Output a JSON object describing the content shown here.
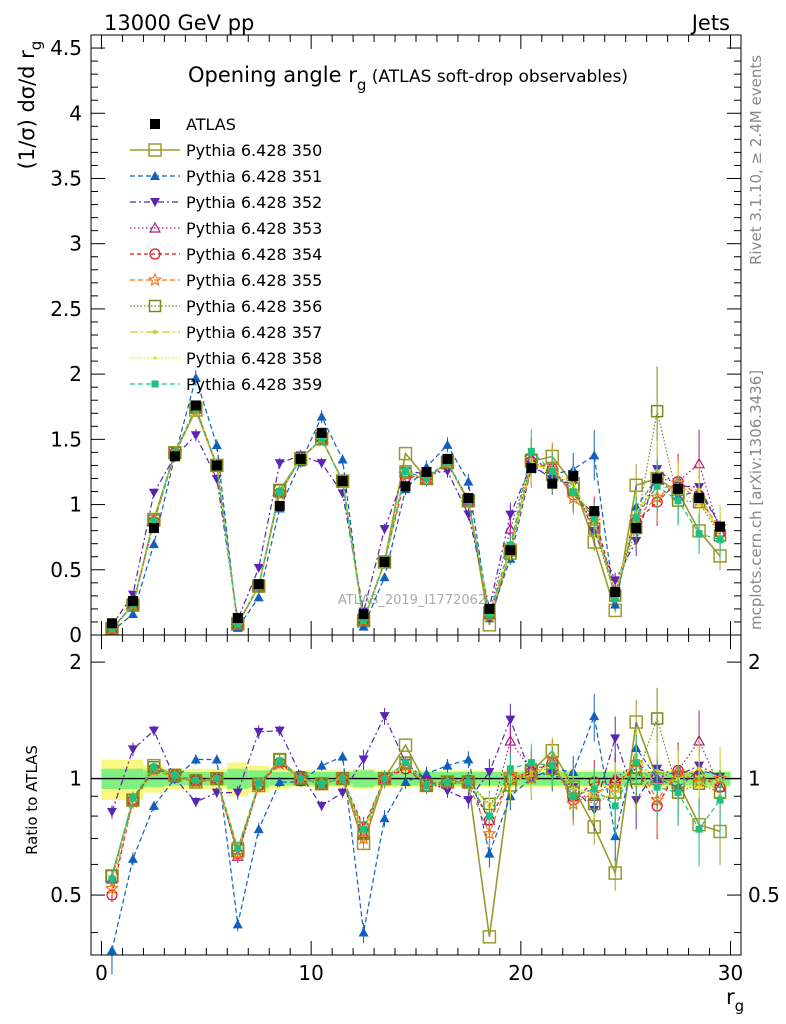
{
  "header": {
    "left": "13000 GeV pp",
    "right": "Jets"
  },
  "side_labels": {
    "rivet": "Rivet 3.1.10, ≥ 2.4M events",
    "mcplots": "mcplots.cern.ch [arXiv:1306.3436]"
  },
  "watermark": "ATLAS_2019_I1772062",
  "title": {
    "main": "Opening angle r",
    "sub": "g",
    "paren": " (ATLAS soft-drop observables)"
  },
  "ylabel_main": {
    "text": "(1/σ) dσ/d r",
    "sub": "g"
  },
  "ylabel_ratio": "Ratio to ATLAS",
  "xlabel": {
    "text": "r",
    "sub": "g"
  },
  "colors": {
    "s350": "#9a9a2f",
    "s351": "#1060c0",
    "s352": "#5a24b4",
    "s353": "#aa1a8a",
    "s354": "#e0102a",
    "s355": "#f07a18",
    "s356": "#7a8a18",
    "s357": "#d8c818",
    "s358": "#d8e830",
    "s359": "#20c080",
    "band_inner": "#80f080",
    "band_outer": "#f8f880"
  },
  "chart_data": {
    "type": "scatter",
    "xlim": [
      -0.5,
      30.5
    ],
    "ylim_main": [
      0,
      4.6
    ],
    "ylim_ratio": [
      0.35,
      2.35
    ],
    "x": [
      0.5,
      1.5,
      2.5,
      3.5,
      4.5,
      5.5,
      6.5,
      7.5,
      8.5,
      9.5,
      10.5,
      11.5,
      12.5,
      13.5,
      14.5,
      15.5,
      16.5,
      17.5,
      18.5,
      19.5,
      20.5,
      21.5,
      22.5,
      23.5,
      24.5,
      25.5,
      26.5,
      27.5,
      28.5,
      29.5
    ],
    "x_ticks": [
      0,
      10,
      20,
      30
    ],
    "y_ticks_main": [
      0,
      0.5,
      1,
      1.5,
      2,
      2.5,
      3,
      3.5,
      4,
      4.5
    ],
    "y_ticks_main_labels": [
      "0",
      "0.5",
      "1",
      "1.5",
      "2",
      "2.5",
      "3",
      "3.5",
      "4",
      "4.5"
    ],
    "y_ticks_ratio": [
      0.5,
      1,
      2
    ],
    "y_ticks_ratio_labels": [
      "0.5",
      "1",
      "2"
    ],
    "legend": [
      "ATLAS",
      "Pythia 6.428 350",
      "Pythia 6.428 351",
      "Pythia 6.428 352",
      "Pythia 6.428 353",
      "Pythia 6.428 354",
      "Pythia 6.428 355",
      "Pythia 6.428 356",
      "Pythia 6.428 357",
      "Pythia 6.428 358",
      "Pythia 6.428 359"
    ],
    "atlas": [
      0.09,
      0.26,
      0.82,
      1.37,
      1.76,
      1.3,
      0.13,
      0.39,
      0.99,
      1.35,
      1.55,
      1.18,
      0.16,
      0.56,
      1.14,
      1.25,
      1.35,
      1.05,
      0.2,
      0.65,
      1.28,
      1.16,
      1.22,
      0.95,
      0.33,
      0.82,
      1.2,
      1.12,
      1.05,
      0.83
    ],
    "band_inner": [
      0.06,
      0.06,
      0.05,
      0.04,
      0.04,
      0.04,
      0.06,
      0.05,
      0.04,
      0.04,
      0.04,
      0.04,
      0.05,
      0.04,
      0.04,
      0.04,
      0.04,
      0.04,
      0.04,
      0.04,
      0.04,
      0.04,
      0.04,
      0.04,
      0.04,
      0.04,
      0.04,
      0.04,
      0.04,
      0.04
    ],
    "band_outer": [
      0.12,
      0.12,
      0.08,
      0.06,
      0.06,
      0.06,
      0.1,
      0.08,
      0.06,
      0.05,
      0.05,
      0.05,
      0.06,
      0.05,
      0.05,
      0.05,
      0.05,
      0.05,
      0.05,
      0.05,
      0.05,
      0.05,
      0.05,
      0.05,
      0.05,
      0.05,
      0.05,
      0.05,
      0.05,
      0.05
    ],
    "series": [
      {
        "name": "Pythia 6.428 350",
        "ratio": [
          0.56,
          0.88,
          1.08,
          1.02,
          0.98,
          1.0,
          0.65,
          0.96,
          1.12,
          1.0,
          0.97,
          1.0,
          0.68,
          1.0,
          1.22,
          0.96,
          0.98,
          0.98,
          0.39,
          1.0,
          1.04,
          1.18,
          0.95,
          0.75,
          0.57,
          1.4,
          1.0,
          0.98,
          0.76,
          0.73
        ],
        "err": [
          0,
          0,
          0,
          0,
          0,
          0,
          0,
          0,
          0,
          0,
          0,
          0,
          0,
          0,
          0,
          0,
          0,
          0,
          0,
          0.04,
          0.06,
          0.08,
          0.08,
          0.1,
          0.1,
          0.14,
          0.14,
          0.14,
          0.16,
          0.18
        ]
      },
      {
        "name": "Pythia 6.428 351",
        "ratio": [
          0.3,
          0.62,
          0.85,
          1.0,
          1.12,
          1.12,
          0.42,
          0.74,
          0.98,
          0.98,
          1.08,
          1.14,
          0.4,
          0.79,
          0.98,
          1.03,
          1.08,
          1.12,
          0.64,
          0.9,
          1.0,
          1.06,
          1.04,
          1.45,
          0.71,
          1.2,
          1.0,
          0.95,
          1.05,
          1.02
        ],
        "err": [
          0.04,
          0.04,
          0.03,
          0.03,
          0.03,
          0.03,
          0.04,
          0.04,
          0.03,
          0.03,
          0.03,
          0.03,
          0.06,
          0.05,
          0.04,
          0.04,
          0.04,
          0.05,
          0.08,
          0.08,
          0.1,
          0.1,
          0.1,
          0.14,
          0.14,
          0.16,
          0.16,
          0.16,
          0.18,
          0.18
        ]
      },
      {
        "name": "Pythia 6.428 352",
        "ratio": [
          0.82,
          1.19,
          1.33,
          1.0,
          0.87,
          0.92,
          0.92,
          1.32,
          1.33,
          1.02,
          0.85,
          0.92,
          1.12,
          1.45,
          1.1,
          0.99,
          0.93,
          0.88,
          1.04,
          1.42,
          1.02,
          1.03,
          0.95,
          0.83,
          1.27,
          0.88,
          1.06,
          1.02,
          1.08,
          1.01
        ],
        "err": [
          0.04,
          0.04,
          0.03,
          0.03,
          0.03,
          0.03,
          0.04,
          0.04,
          0.03,
          0.03,
          0.03,
          0.03,
          0.06,
          0.05,
          0.04,
          0.04,
          0.04,
          0.05,
          0.08,
          0.1,
          0.1,
          0.1,
          0.1,
          0.12,
          0.14,
          0.16,
          0.16,
          0.16,
          0.18,
          0.18
        ]
      },
      {
        "name": "Pythia 6.428 353",
        "ratio": [
          0.55,
          0.88,
          1.06,
          1.02,
          0.99,
          1.0,
          0.63,
          0.96,
          1.1,
          1.0,
          0.97,
          1.0,
          0.72,
          1.0,
          1.08,
          0.95,
          0.97,
          0.98,
          0.78,
          1.25,
          1.05,
          1.1,
          0.9,
          0.9,
          1.0,
          1.1,
          1.0,
          1.05,
          1.25,
          0.95
        ],
        "err": [
          0.04,
          0.04,
          0.03,
          0.03,
          0.03,
          0.03,
          0.04,
          0.04,
          0.03,
          0.03,
          0.03,
          0.03,
          0.06,
          0.05,
          0.04,
          0.04,
          0.04,
          0.05,
          0.08,
          0.1,
          0.12,
          0.12,
          0.12,
          0.14,
          0.16,
          0.18,
          0.18,
          0.18,
          0.2,
          0.2
        ]
      },
      {
        "name": "Pythia 6.428 354",
        "ratio": [
          0.5,
          0.88,
          1.06,
          1.02,
          0.99,
          1.0,
          0.64,
          0.96,
          1.1,
          1.0,
          0.97,
          1.0,
          0.75,
          1.0,
          1.06,
          0.97,
          0.98,
          0.99,
          0.78,
          1.0,
          1.04,
          1.1,
          0.88,
          0.98,
          0.98,
          1.06,
          0.85,
          1.05,
          1.02,
          0.95
        ],
        "err": [
          0.04,
          0.04,
          0.03,
          0.03,
          0.03,
          0.03,
          0.04,
          0.04,
          0.03,
          0.03,
          0.03,
          0.03,
          0.06,
          0.05,
          0.04,
          0.04,
          0.04,
          0.05,
          0.08,
          0.1,
          0.12,
          0.12,
          0.12,
          0.14,
          0.16,
          0.18,
          0.18,
          0.18,
          0.2,
          0.2
        ]
      },
      {
        "name": "Pythia 6.428 355",
        "ratio": [
          0.52,
          0.87,
          1.05,
          1.01,
          0.98,
          0.99,
          0.64,
          0.96,
          1.09,
          1.0,
          0.97,
          1.0,
          0.7,
          0.99,
          1.08,
          0.96,
          0.98,
          0.97,
          0.72,
          1.02,
          1.0,
          1.12,
          0.86,
          0.92,
          0.95,
          1.1,
          0.88,
          1.04,
          0.98,
          1.0
        ],
        "err": [
          0.04,
          0.04,
          0.03,
          0.03,
          0.03,
          0.03,
          0.04,
          0.04,
          0.03,
          0.03,
          0.03,
          0.03,
          0.06,
          0.05,
          0.04,
          0.04,
          0.04,
          0.05,
          0.08,
          0.1,
          0.12,
          0.12,
          0.12,
          0.14,
          0.16,
          0.18,
          0.18,
          0.18,
          0.2,
          0.2
        ]
      },
      {
        "name": "Pythia 6.428 356",
        "ratio": [
          0.56,
          0.88,
          1.07,
          1.02,
          0.99,
          1.0,
          0.66,
          0.97,
          1.12,
          1.0,
          0.97,
          1.0,
          0.72,
          1.0,
          1.1,
          0.96,
          0.98,
          0.98,
          0.86,
          0.96,
          1.05,
          1.06,
          0.92,
          0.86,
          0.92,
          1.0,
          1.43,
          0.92,
          0.97,
          0.92
        ],
        "err": [
          0.04,
          0.04,
          0.03,
          0.03,
          0.03,
          0.03,
          0.04,
          0.04,
          0.03,
          0.03,
          0.03,
          0.03,
          0.06,
          0.05,
          0.04,
          0.04,
          0.04,
          0.05,
          0.08,
          0.1,
          0.12,
          0.12,
          0.12,
          0.14,
          0.16,
          0.18,
          0.2,
          0.18,
          0.2,
          0.2
        ]
      },
      {
        "name": "Pythia 6.428 357",
        "ratio": [
          0.55,
          0.89,
          1.07,
          1.02,
          0.99,
          1.0,
          0.66,
          0.97,
          1.11,
          1.0,
          0.97,
          1.0,
          0.73,
          1.0,
          1.1,
          0.96,
          0.98,
          0.98,
          0.85,
          0.98,
          1.02,
          1.1,
          0.95,
          0.9,
          0.9,
          1.15,
          0.95,
          1.0,
          1.06,
          0.9
        ],
        "err": [
          0.04,
          0.04,
          0.03,
          0.03,
          0.03,
          0.03,
          0.04,
          0.04,
          0.03,
          0.03,
          0.03,
          0.03,
          0.06,
          0.05,
          0.04,
          0.04,
          0.04,
          0.05,
          0.08,
          0.1,
          0.12,
          0.12,
          0.12,
          0.14,
          0.16,
          0.18,
          0.18,
          0.18,
          0.2,
          0.2
        ]
      },
      {
        "name": "Pythia 6.428 358",
        "ratio": [
          0.55,
          0.89,
          1.07,
          1.02,
          0.99,
          1.0,
          0.66,
          0.97,
          1.11,
          1.0,
          0.97,
          1.0,
          0.73,
          1.0,
          1.1,
          0.96,
          0.98,
          0.98,
          0.84,
          1.0,
          1.04,
          1.08,
          0.94,
          0.92,
          0.95,
          1.12,
          1.05,
          1.0,
          0.95,
          1.0
        ],
        "err": [
          0.04,
          0.04,
          0.03,
          0.03,
          0.03,
          0.03,
          0.04,
          0.04,
          0.03,
          0.03,
          0.03,
          0.03,
          0.06,
          0.05,
          0.04,
          0.04,
          0.04,
          0.05,
          0.08,
          0.1,
          0.12,
          0.12,
          0.12,
          0.14,
          0.16,
          0.18,
          0.18,
          0.18,
          0.2,
          0.2
        ]
      },
      {
        "name": "Pythia 6.428 359",
        "ratio": [
          0.55,
          0.89,
          1.07,
          1.02,
          0.99,
          1.0,
          0.66,
          0.97,
          1.11,
          1.0,
          0.97,
          1.0,
          0.74,
          1.0,
          1.1,
          0.96,
          0.98,
          0.98,
          0.8,
          1.06,
          1.1,
          1.08,
          0.9,
          0.94,
          0.85,
          1.1,
          0.95,
          0.92,
          0.74,
          0.88
        ],
        "err": [
          0.04,
          0.04,
          0.03,
          0.03,
          0.03,
          0.03,
          0.04,
          0.04,
          0.03,
          0.03,
          0.03,
          0.03,
          0.06,
          0.05,
          0.04,
          0.04,
          0.04,
          0.05,
          0.08,
          0.1,
          0.12,
          0.12,
          0.12,
          0.14,
          0.16,
          0.18,
          0.18,
          0.18,
          0.2,
          0.2
        ]
      }
    ]
  }
}
